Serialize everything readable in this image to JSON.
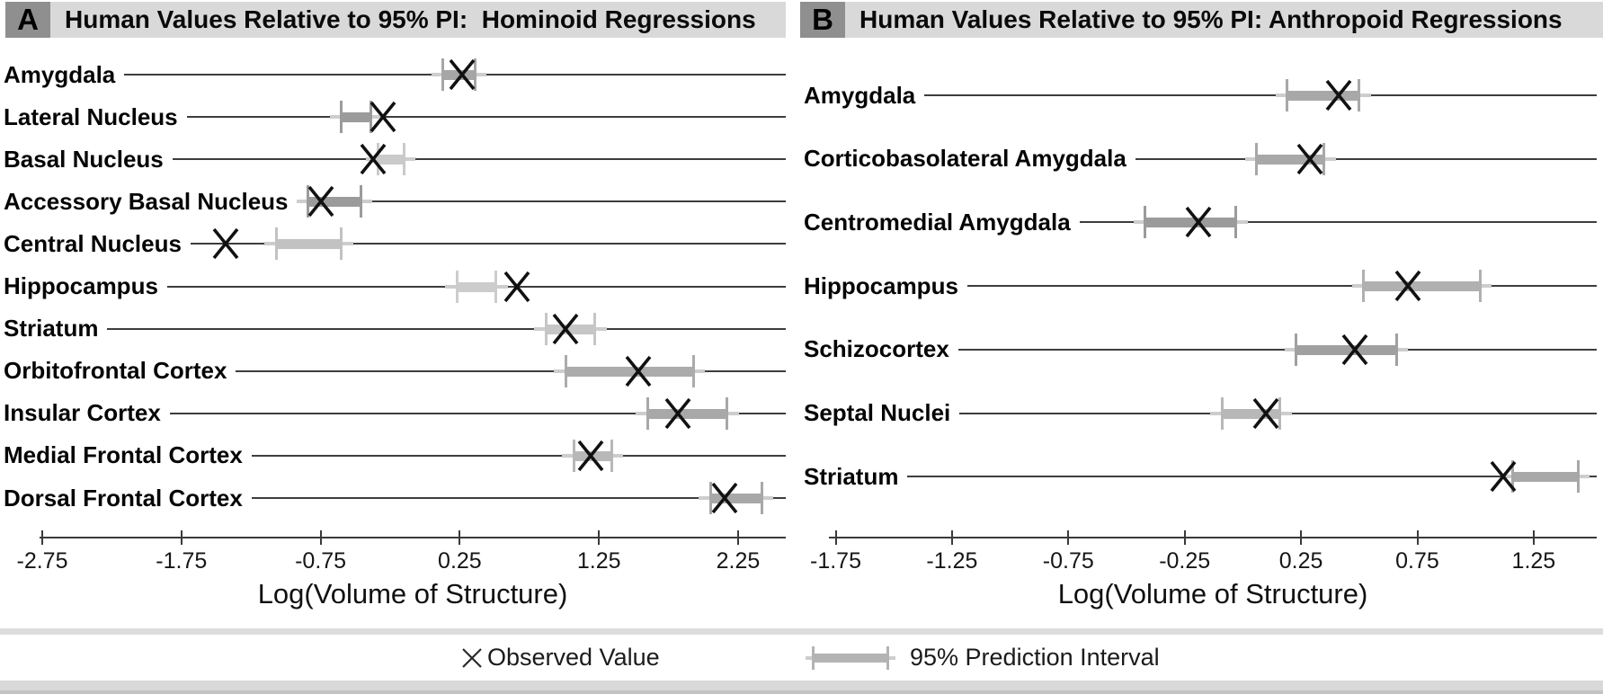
{
  "legend": {
    "observed_label": "Observed Value",
    "pi_label": "95% Prediction Interval"
  },
  "chart_data": [
    {
      "type": "forest",
      "panel_letter": "A",
      "title": "Human Values Relative to 95% PI:  Hominoid Regressions",
      "xlabel": "Log(Volume of Structure)",
      "xlim": [
        -3.04,
        2.52
      ],
      "tick_values": [
        -2.75,
        -1.75,
        -0.75,
        0.25,
        1.25,
        2.25
      ],
      "tick_labels": [
        "-2.75",
        "-1.75",
        "-0.75",
        "0.25",
        "1.25",
        "2.25"
      ],
      "marker": "x",
      "marker_color": "#111111",
      "whisker_color": "#cdcdcd",
      "header_bg": "#d9d9d9",
      "letter_bg": "#8f8f8f",
      "rows": [
        {
          "label": "Amygdala",
          "observed": 0.27,
          "pi": [
            0.13,
            0.36
          ],
          "bar_color": "#a6a6a6"
        },
        {
          "label": "Lateral Nucleus",
          "observed": -0.3,
          "pi": [
            -0.6,
            -0.39
          ],
          "bar_color": "#9b9b9b"
        },
        {
          "label": "Basal Nucleus",
          "observed": -0.37,
          "pi": [
            -0.34,
            -0.15
          ],
          "bar_color": "#cacaca"
        },
        {
          "label": "Accessory Basal Nucleus",
          "observed": -0.75,
          "pi": [
            -0.84,
            -0.46
          ],
          "bar_color": "#9b9b9b"
        },
        {
          "label": "Central Nucleus",
          "observed": -1.43,
          "pi": [
            -1.07,
            -0.6
          ],
          "bar_color": "#c2c2c2"
        },
        {
          "label": "Hippocampus",
          "observed": 0.66,
          "pi": [
            0.23,
            0.51
          ],
          "bar_color": "#cccccc"
        },
        {
          "label": "Striatum",
          "observed": 1.01,
          "pi": [
            0.87,
            1.22
          ],
          "bar_color": "#c6c6c6"
        },
        {
          "label": "Orbitofrontal Cortex",
          "observed": 1.53,
          "pi": [
            1.01,
            1.93
          ],
          "bar_color": "#ababab"
        },
        {
          "label": "Insular Cortex",
          "observed": 1.82,
          "pi": [
            1.6,
            2.17
          ],
          "bar_color": "#a8a8a8"
        },
        {
          "label": "Medial Frontal Cortex",
          "observed": 1.19,
          "pi": [
            1.07,
            1.34
          ],
          "bar_color": "#b8b8b8"
        },
        {
          "label": "Dorsal Frontal Cortex",
          "observed": 2.15,
          "pi": [
            2.05,
            2.42
          ],
          "bar_color": "#a8a8a8"
        }
      ]
    },
    {
      "type": "forest",
      "panel_letter": "B",
      "title": "Human Values Relative to 95% PI: Anthropoid Regressions",
      "xlabel": "Log(Volume of Structure)",
      "xlim": [
        -1.9,
        1.54
      ],
      "tick_values": [
        -1.75,
        -1.25,
        -0.75,
        -0.25,
        0.25,
        0.75,
        1.25
      ],
      "tick_labels": [
        "-1.75",
        "-1.25",
        "-0.75",
        "-0.25",
        "0.25",
        "0.75",
        "1.25"
      ],
      "marker": "x",
      "marker_color": "#111111",
      "whisker_color": "#cdcdcd",
      "header_bg": "#d9d9d9",
      "letter_bg": "#8f8f8f",
      "rows": [
        {
          "label": "Amygdala",
          "observed": 0.41,
          "pi": [
            0.19,
            0.5
          ],
          "bar_color": "#a8a8a8"
        },
        {
          "label": "Corticobasolateral Amygdala",
          "observed": 0.29,
          "pi": [
            0.06,
            0.35
          ],
          "bar_color": "#a8a8a8"
        },
        {
          "label": "Centromedial Amygdala",
          "observed": -0.19,
          "pi": [
            -0.42,
            -0.03
          ],
          "bar_color": "#9b9b9b"
        },
        {
          "label": "Hippocampus",
          "observed": 0.71,
          "pi": [
            0.52,
            1.02
          ],
          "bar_color": "#b0b0b0"
        },
        {
          "label": "Schizocortex",
          "observed": 0.48,
          "pi": [
            0.23,
            0.66
          ],
          "bar_color": "#a0a0a0"
        },
        {
          "label": "Septal Nuclei",
          "observed": 0.1,
          "pi": [
            -0.09,
            0.16
          ],
          "bar_color": "#b8b8b8"
        },
        {
          "label": "Striatum",
          "observed": 1.12,
          "pi": [
            1.16,
            1.44
          ],
          "bar_color": "#a8a8a8"
        }
      ]
    }
  ]
}
